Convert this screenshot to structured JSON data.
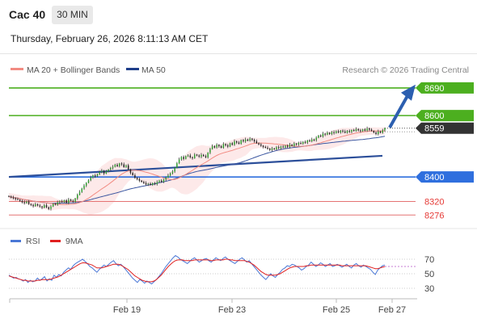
{
  "header": {
    "instrument": "Cac 40",
    "timeframe": "30 MIN",
    "datetime": "Thursday, February 26, 2026 8:11:13 AM CET"
  },
  "legend": {
    "items": [
      {
        "label": "MA 20 + Bollinger Bands",
        "color": "#f28b82"
      },
      {
        "label": "MA 50",
        "color": "#1f3f8a"
      }
    ],
    "copyright": "Research © 2026 Trading Central"
  },
  "chart_data": [
    {
      "type": "candlestick",
      "title": "",
      "ylim": [
        8232,
        8724
      ],
      "x_ticks": [
        "Feb 19",
        "Feb 23",
        "Feb 25",
        "Feb 27"
      ],
      "levels": [
        {
          "value": 8690,
          "label": "8690",
          "kind": "resistance",
          "color": "#4caf1f"
        },
        {
          "value": 8600,
          "label": "8600",
          "kind": "resistance",
          "color": "#4caf1f"
        },
        {
          "value": 8559,
          "label": "8559",
          "kind": "last-price",
          "color": "#333333"
        },
        {
          "value": 8400,
          "label": "8400",
          "kind": "pivot",
          "color": "#2f6fde"
        },
        {
          "value": 8320,
          "label": "8320",
          "kind": "support",
          "color": "#e57373"
        },
        {
          "value": 8276,
          "label": "8276",
          "kind": "support",
          "color": "#e57373"
        }
      ],
      "trendline": {
        "start": 8400,
        "end": 8469
      },
      "forecast_arrow": {
        "from": 8561,
        "to": 8680
      },
      "close_series": [
        8336,
        8333,
        8331,
        8328,
        8326,
        8322,
        8318,
        8315,
        8320,
        8312,
        8309,
        8305,
        8311,
        8307,
        8304,
        8300,
        8308,
        8301,
        8296,
        8304,
        8312,
        8310,
        8317,
        8321,
        8318,
        8324,
        8316,
        8326,
        8322,
        8319,
        8330,
        8342,
        8351,
        8362,
        8372,
        8381,
        8389,
        8398,
        8405,
        8402,
        8409,
        8416,
        8420,
        8411,
        8418,
        8424,
        8429,
        8433,
        8440,
        8435,
        8444,
        8441,
        8432,
        8438,
        8425,
        8413,
        8406,
        8397,
        8393,
        8388,
        8384,
        8380,
        8376,
        8378,
        8374,
        8380,
        8377,
        8383,
        8388,
        8384,
        8392,
        8398,
        8405,
        8412,
        8418,
        8430,
        8445,
        8457,
        8465,
        8459,
        8468,
        8470,
        8464,
        8461,
        8473,
        8470,
        8466,
        8472,
        8468,
        8464,
        8479,
        8491,
        8500,
        8496,
        8505,
        8500,
        8495,
        8507,
        8503,
        8499,
        8510,
        8505,
        8516,
        8512,
        8508,
        8520,
        8516,
        8522,
        8518,
        8525,
        8521,
        8516,
        8510,
        8506,
        8502,
        8498,
        8495,
        8492,
        8488,
        8493,
        8490,
        8497,
        8494,
        8499,
        8496,
        8502,
        8498,
        8505,
        8501,
        8509,
        8506,
        8511,
        8508,
        8514,
        8512,
        8519,
        8516,
        8522,
        8520,
        8528,
        8535,
        8532,
        8541,
        8538,
        8544,
        8540,
        8546,
        8543,
        8549,
        8545,
        8551,
        8548,
        8544,
        8550,
        8547,
        8553,
        8550,
        8556,
        8552,
        8549,
        8555,
        8551,
        8558,
        8554,
        8550,
        8545,
        8540,
        8548,
        8544,
        8552,
        8559
      ],
      "ma20_end": 8543,
      "ma50_end": 8529
    },
    {
      "type": "line",
      "title": "",
      "series": [
        {
          "name": "RSI",
          "color": "#4a77d6"
        },
        {
          "name": "9MA",
          "color": "#e02020"
        }
      ],
      "ylim": [
        20,
        80
      ],
      "y_ticks": [
        70,
        50,
        30
      ],
      "rsi": [
        48,
        46,
        44,
        45,
        43,
        42,
        40,
        42,
        38,
        41,
        39,
        40,
        44,
        41,
        43,
        46,
        40,
        43,
        41,
        48,
        45,
        49,
        47,
        52,
        55,
        58,
        56,
        61,
        64,
        66,
        68,
        70,
        67,
        64,
        60,
        58,
        55,
        52,
        56,
        59,
        62,
        60,
        63,
        66,
        68,
        64,
        61,
        63,
        60,
        56,
        52,
        48,
        44,
        41,
        38,
        42,
        40,
        37,
        40,
        38,
        36,
        39,
        42,
        46,
        50,
        55,
        60,
        64,
        68,
        72,
        75,
        73,
        70,
        68,
        66,
        64,
        67,
        70,
        72,
        69,
        66,
        68,
        70,
        71,
        68,
        66,
        69,
        72,
        70,
        68,
        71,
        73,
        70,
        68,
        66,
        64,
        67,
        70,
        72,
        69,
        66,
        68,
        64,
        60,
        56,
        52,
        48,
        45,
        42,
        46,
        50,
        47,
        45,
        49,
        52,
        56,
        58,
        61,
        60,
        63,
        62,
        60,
        58,
        55,
        57,
        60,
        62,
        66,
        63,
        60,
        62,
        65,
        63,
        60,
        62,
        64,
        60,
        61,
        63,
        61,
        59,
        61,
        63,
        60,
        58,
        62,
        64,
        61,
        59,
        62,
        60,
        58,
        56,
        52,
        49,
        55,
        58,
        61,
        62
      ],
      "ma9": [
        47,
        46,
        45,
        44,
        43,
        42,
        41,
        41,
        40,
        40,
        40,
        40,
        41,
        41,
        42,
        42,
        42,
        42,
        43,
        44,
        45,
        46,
        48,
        50,
        52,
        54,
        56,
        58,
        60,
        62,
        64,
        65,
        65,
        64,
        63,
        62,
        60,
        58,
        58,
        58,
        59,
        60,
        61,
        62,
        63,
        63,
        63,
        62,
        60,
        58,
        56,
        53,
        50,
        47,
        45,
        43,
        41,
        40,
        39,
        39,
        39,
        40,
        42,
        45,
        48,
        52,
        56,
        60,
        63,
        66,
        68,
        69,
        69,
        69,
        68,
        68,
        68,
        68,
        69,
        69,
        69,
        69,
        69,
        69,
        69,
        68,
        68,
        69,
        69,
        69,
        69,
        70,
        70,
        69,
        69,
        68,
        68,
        68,
        68,
        68,
        67,
        66,
        64,
        62,
        59,
        56,
        53,
        51,
        49,
        48,
        48,
        48,
        48,
        49,
        50,
        52,
        54,
        56,
        58,
        59,
        60,
        60,
        60,
        60,
        60,
        61,
        61,
        62,
        62,
        62,
        62,
        62,
        62,
        62,
        62,
        62,
        62,
        62,
        62,
        62,
        61,
        61,
        61,
        61,
        61,
        61,
        61,
        61,
        61,
        61,
        61,
        60,
        59,
        58,
        57,
        57,
        58,
        59,
        60
      ]
    }
  ]
}
